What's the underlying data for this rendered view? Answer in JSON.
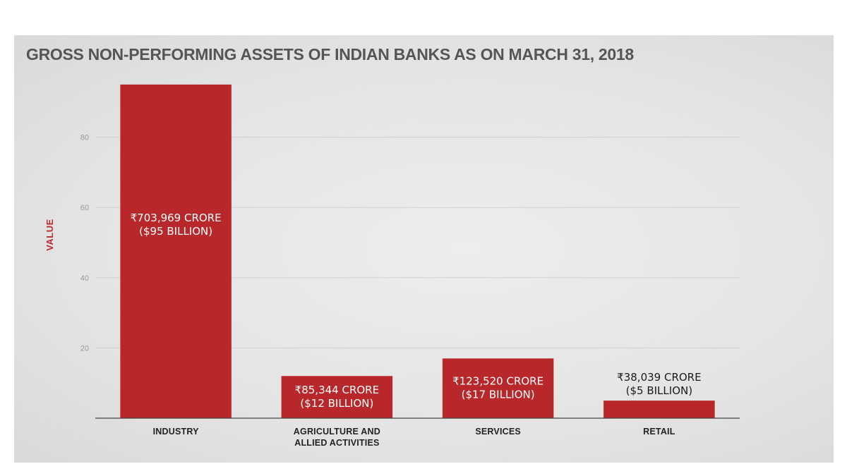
{
  "chart_data": {
    "type": "bar",
    "title": "GROSS NON-PERFORMING ASSETS OF INDIAN BANKS AS ON MARCH 31, 2018",
    "ylabel": "VALUE",
    "xlabel": "",
    "ylim": [
      0,
      100
    ],
    "yticks": [
      20,
      40,
      60,
      80
    ],
    "grid": true,
    "bar_color": "#b8282b",
    "categories": [
      [
        "INDUSTRY"
      ],
      [
        "AGRICULTURE AND",
        "ALLIED ACTIVITIES"
      ],
      [
        "SERVICES"
      ],
      [
        "RETAIL"
      ]
    ],
    "values": [
      95,
      12,
      17,
      5
    ],
    "data_labels": [
      [
        "₹703,969 CRORE",
        "($95  BILLION)"
      ],
      [
        "₹85,344 CRORE",
        "($12 BILLION)"
      ],
      [
        "₹123,520 CRORE",
        "($17 BILLION)"
      ],
      [
        "₹38,039 CRORE",
        "($5 BILLION)"
      ]
    ]
  }
}
